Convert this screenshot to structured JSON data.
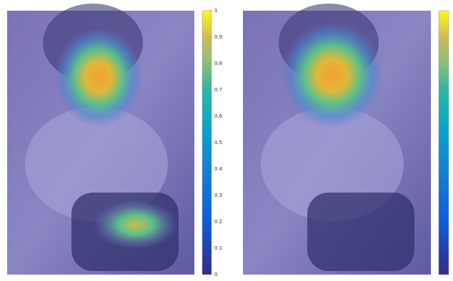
{
  "panels": [
    {
      "colorbar": {
        "ticks": [
          0,
          0.1,
          0.2,
          0.3,
          0.4,
          0.5,
          0.6,
          0.7,
          0.8,
          0.9,
          1
        ]
      }
    }
  ]
}
